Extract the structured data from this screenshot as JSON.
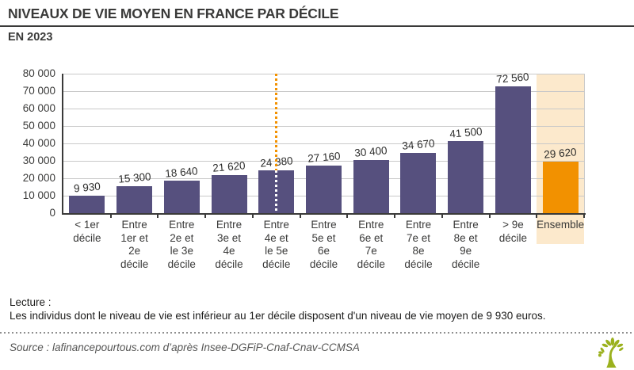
{
  "header": {
    "title": "NIVEAUX DE VIE MOYEN EN FRANCE PAR DÉCILE",
    "subtitle": "EN 2023"
  },
  "chart_data": {
    "type": "bar",
    "title": "Niveaux de vie moyen en France par décile, en 2023",
    "categories": [
      "< 1er\ndécile",
      "Entre\n1er et\n2e\ndécile",
      "Entre\n2e et\nle 3e\ndécile",
      "Entre\n3e et\n4e\ndécile",
      "Entre\n4e et\nle 5e\ndécile",
      "Entre\n5e et\n6e\ndécile",
      "Entre\n6e et\n7e\ndécile",
      "Entre\n7e et\n8e\ndécile",
      "Entre\n8e et\n9e\ndécile",
      "> 9e\ndécile",
      "Ensemble"
    ],
    "values": [
      9930,
      15300,
      18640,
      21620,
      24380,
      27160,
      30400,
      34670,
      41500,
      72560,
      29620
    ],
    "unit": "euros",
    "ylim": [
      0,
      80000
    ],
    "ytick_step": 10000,
    "grid": true,
    "legend": "none",
    "highlight_index": 10,
    "median_line_index": 4,
    "colors": {
      "bar": "#56507e",
      "highlight_bar": "#f29100",
      "highlight_band": "#fce9cc",
      "median_dots": "#f29100",
      "median_dots_on_bar": "#ffffff",
      "gridline": "#c9c9c9",
      "axis": "#3a3a39"
    }
  },
  "notes": {
    "lecture_label": "Lecture :",
    "lecture_text": "Les individus dont le niveau de vie est inférieur au 1er décile disposent d'un niveau de vie moyen de 9 930 euros."
  },
  "footer": {
    "source": "Source : lafinancepourtous.com d’après Insee-DGFiP-Cnaf-Cnav-CCMSA",
    "logo": "tree-logo",
    "logo_color": "#9bb11e"
  }
}
